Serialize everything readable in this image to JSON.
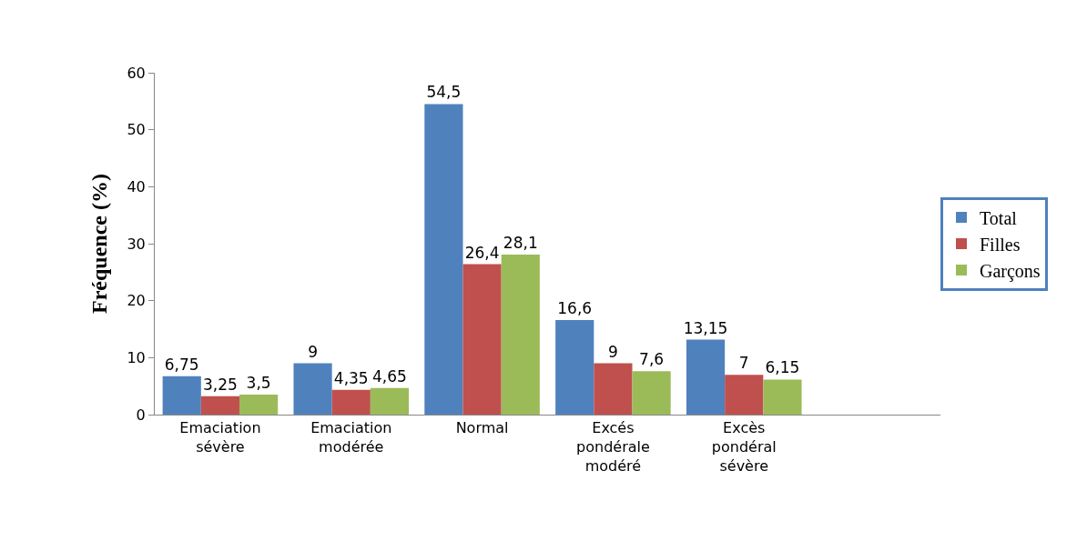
{
  "chart_data": {
    "type": "bar",
    "ylabel": "Fréquence (%)",
    "categories": [
      "Emaciation\nsévère",
      "Emaciation\nmodérée",
      "Normal",
      "Excés\npondérale\nmodéré",
      "Excès\npondéral\nsévère"
    ],
    "series": [
      {
        "name": "Total",
        "color": "#4f81bd",
        "values": [
          6.75,
          9,
          54.5,
          16.6,
          13.15
        ],
        "value_labels": [
          "6,75",
          "9",
          "54,5",
          "16,6",
          "13,15"
        ]
      },
      {
        "name": "Filles",
        "color": "#c0504d",
        "values": [
          3.25,
          4.35,
          26.4,
          9,
          7
        ],
        "value_labels": [
          "3,25",
          "4,35",
          "26,4",
          "9",
          "7"
        ]
      },
      {
        "name": "Garçons",
        "color": "#9bbb59",
        "values": [
          3.5,
          4.65,
          28.1,
          7.6,
          6.15
        ],
        "value_labels": [
          "3,5",
          "4,65",
          "28,1",
          "7,6",
          "6,15"
        ]
      }
    ],
    "ylim": [
      0,
      60
    ],
    "yticks": [
      0,
      10,
      20,
      30,
      40,
      50,
      60
    ],
    "legend": "right"
  }
}
